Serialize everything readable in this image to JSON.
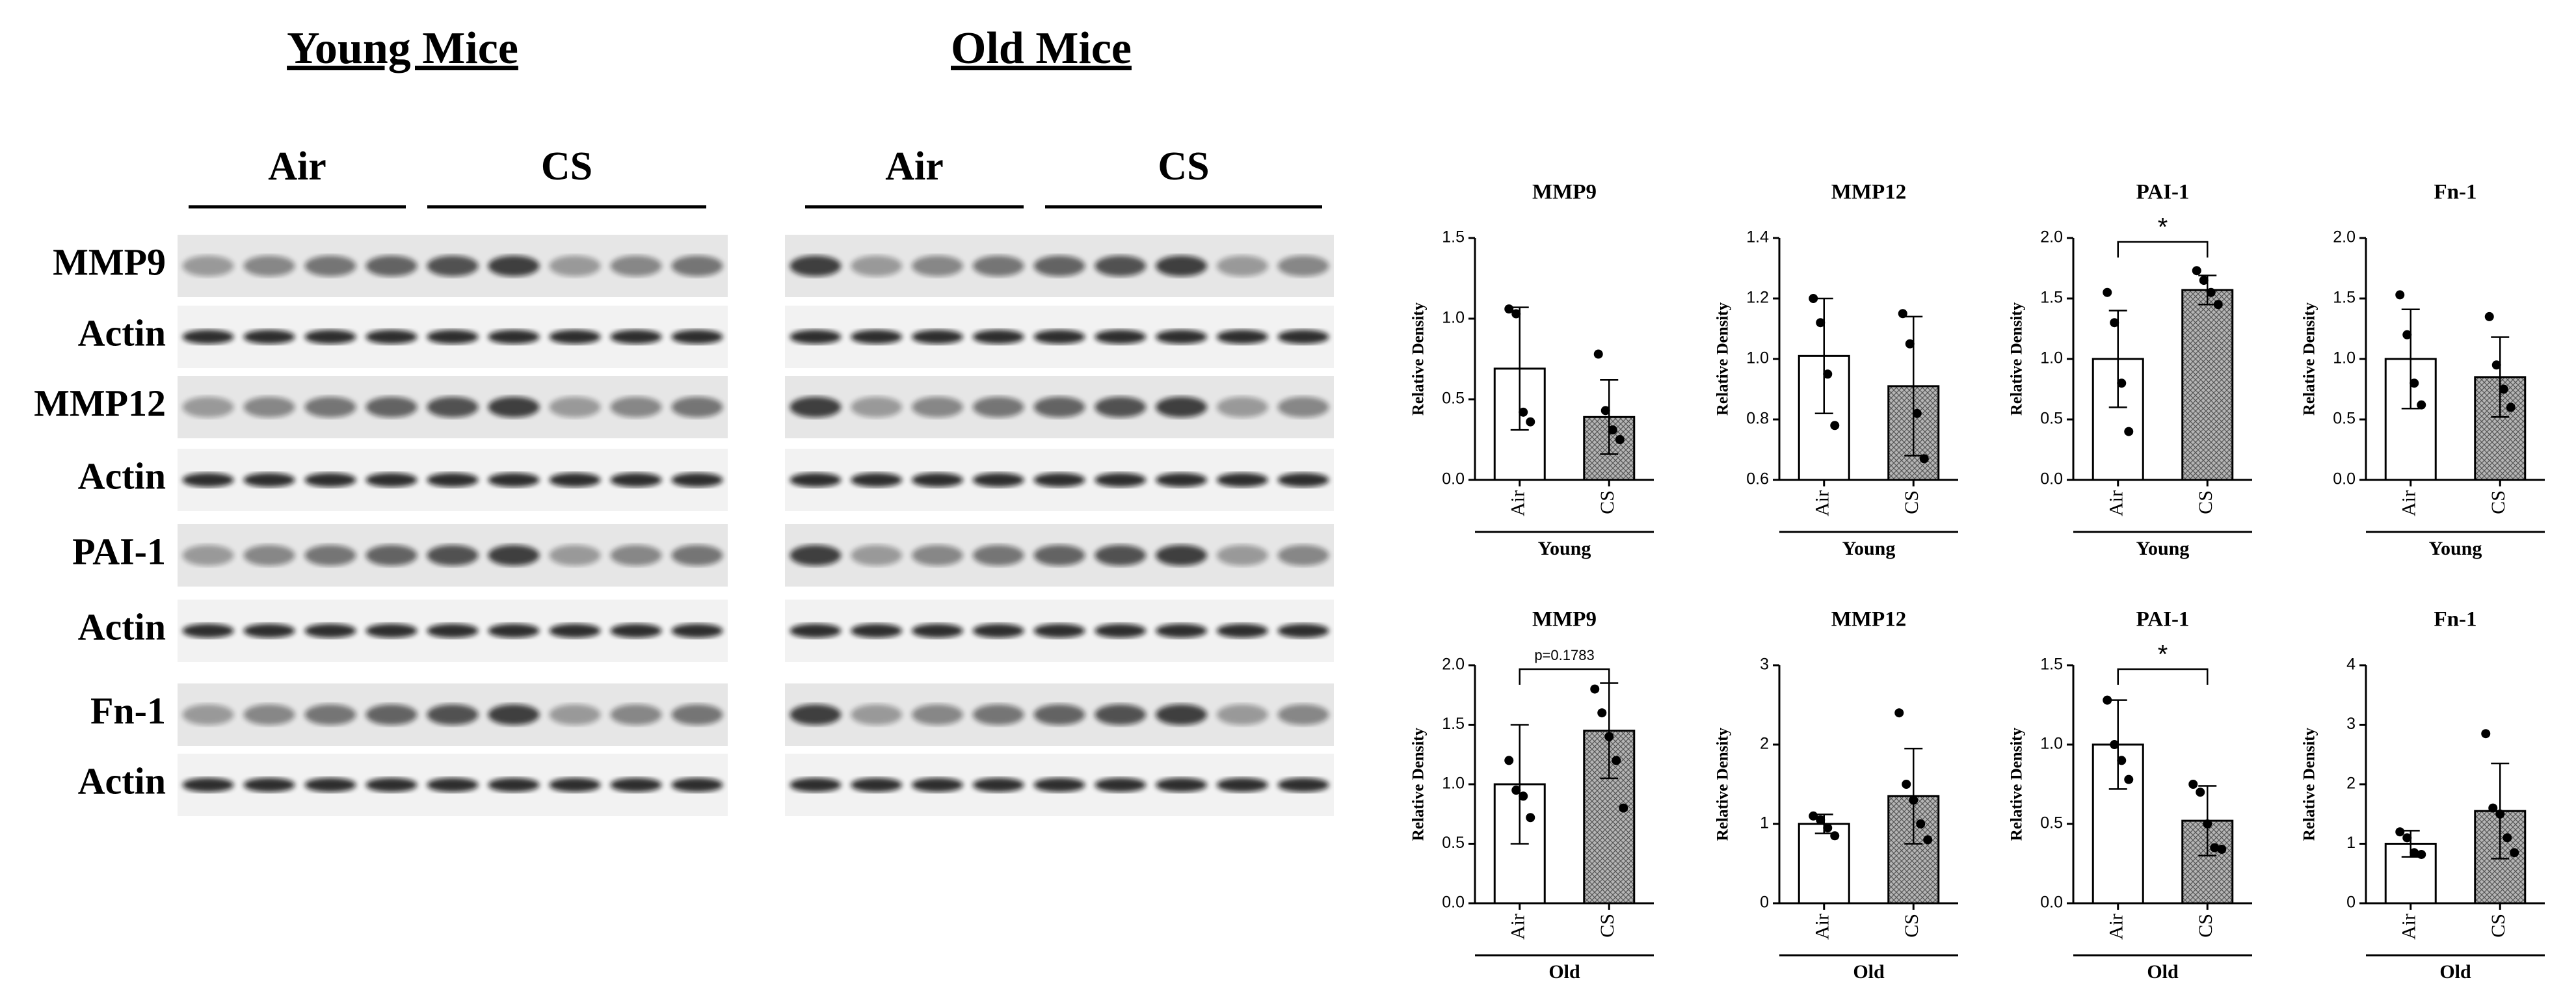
{
  "blots": {
    "panels": [
      {
        "title": "Young Mice",
        "groups": [
          "Air",
          "CS"
        ]
      },
      {
        "title": "Old Mice",
        "groups": [
          "Air",
          "CS"
        ]
      }
    ],
    "rows": [
      "MMP9",
      "Actin",
      "MMP12",
      "Actin",
      "PAI-1",
      "Actin",
      "Fn-1",
      "Actin"
    ]
  },
  "chart_data": [
    {
      "type": "bar",
      "title": "MMP9",
      "ylabel": "Relative Density",
      "group_label": "Young",
      "categories": [
        "Air",
        "CS"
      ],
      "values": [
        0.69,
        0.39
      ],
      "errors": [
        0.38,
        0.23
      ],
      "points": [
        [
          1.06,
          1.03,
          0.42,
          0.36
        ],
        [
          0.78,
          0.43,
          0.31,
          0.25
        ]
      ],
      "colors": [
        "#ffffff",
        "#a8a8a8"
      ],
      "ylim": [
        0,
        1.5
      ],
      "yticks": [
        {
          "value": 0,
          "label": "0.0"
        },
        0.5,
        {
          "value": 1,
          "label": "1.0"
        },
        1.5
      ]
    },
    {
      "type": "bar",
      "title": "MMP12",
      "ylabel": "Relative Density",
      "group_label": "Young",
      "categories": [
        "Air",
        "CS"
      ],
      "values": [
        1.01,
        0.91
      ],
      "errors": [
        0.19,
        0.23
      ],
      "points": [
        [
          1.2,
          1.12,
          0.95,
          0.78
        ],
        [
          1.15,
          1.05,
          0.82,
          0.67
        ]
      ],
      "colors": [
        "#ffffff",
        "#a8a8a8"
      ],
      "ylim": [
        0.6,
        1.4
      ],
      "yticks": [
        0.6,
        0.8,
        {
          "value": 1,
          "label": "1.0"
        },
        1.2,
        1.4
      ]
    },
    {
      "type": "bar",
      "title": "PAI-1",
      "ylabel": "Relative Density",
      "group_label": "Young",
      "annotation": "*",
      "categories": [
        "Air",
        "CS"
      ],
      "values": [
        1.0,
        1.57
      ],
      "errors": [
        0.4,
        0.12
      ],
      "points": [
        [
          1.55,
          1.3,
          0.8,
          0.4
        ],
        [
          1.73,
          1.65,
          1.55,
          1.45
        ]
      ],
      "colors": [
        "#ffffff",
        "#a8a8a8"
      ],
      "ylim": [
        0,
        2
      ],
      "yticks": [
        {
          "value": 0,
          "label": "0.0"
        },
        0.5,
        {
          "value": 1,
          "label": "1.0"
        },
        1.5,
        {
          "value": 2,
          "label": "2.0"
        }
      ]
    },
    {
      "type": "bar",
      "title": "Fn-1",
      "ylabel": "Relative Density",
      "group_label": "Young",
      "categories": [
        "Air",
        "CS"
      ],
      "values": [
        1.0,
        0.85
      ],
      "errors": [
        0.41,
        0.33
      ],
      "points": [
        [
          1.53,
          1.2,
          0.8,
          0.62
        ],
        [
          1.35,
          0.95,
          0.75,
          0.6
        ]
      ],
      "colors": [
        "#ffffff",
        "#a8a8a8"
      ],
      "ylim": [
        0,
        2
      ],
      "yticks": [
        {
          "value": 0,
          "label": "0.0"
        },
        0.5,
        {
          "value": 1,
          "label": "1.0"
        },
        1.5,
        {
          "value": 2,
          "label": "2.0"
        }
      ]
    },
    {
      "type": "bar",
      "title": "MMP9",
      "ylabel": "Relative Density",
      "group_label": "Old",
      "annotation": "p=0.1783",
      "categories": [
        "Air",
        "CS"
      ],
      "values": [
        1.0,
        1.45
      ],
      "errors": [
        0.5,
        0.4
      ],
      "points": [
        [
          1.2,
          0.95,
          0.9,
          0.72
        ],
        [
          1.8,
          1.6,
          1.4,
          1.2,
          0.8
        ]
      ],
      "colors": [
        "#ffffff",
        "#a8a8a8"
      ],
      "ylim": [
        0,
        2
      ],
      "yticks": [
        {
          "value": 0,
          "label": "0.0"
        },
        0.5,
        {
          "value": 1,
          "label": "1.0"
        },
        1.5,
        {
          "value": 2,
          "label": "2.0"
        }
      ]
    },
    {
      "type": "bar",
      "title": "MMP12",
      "ylabel": "Relative Density",
      "group_label": "Old",
      "categories": [
        "Air",
        "CS"
      ],
      "values": [
        1.0,
        1.35
      ],
      "errors": [
        0.12,
        0.6
      ],
      "points": [
        [
          1.1,
          1.05,
          0.95,
          0.85
        ],
        [
          2.4,
          1.5,
          1.3,
          1.0,
          0.8
        ]
      ],
      "colors": [
        "#ffffff",
        "#a8a8a8"
      ],
      "ylim": [
        0,
        3
      ],
      "yticks": [
        0,
        1,
        2,
        3
      ]
    },
    {
      "type": "bar",
      "title": "PAI-1",
      "ylabel": "Relative Density",
      "group_label": "Old",
      "annotation": "*",
      "categories": [
        "Air",
        "CS"
      ],
      "values": [
        1.0,
        0.52
      ],
      "errors": [
        0.28,
        0.22
      ],
      "points": [
        [
          1.28,
          1.0,
          0.9,
          0.78
        ],
        [
          0.75,
          0.7,
          0.5,
          0.35,
          0.34
        ]
      ],
      "colors": [
        "#ffffff",
        "#a8a8a8"
      ],
      "ylim": [
        0,
        1.5
      ],
      "yticks": [
        {
          "value": 0,
          "label": "0.0"
        },
        0.5,
        {
          "value": 1,
          "label": "1.0"
        },
        1.5
      ]
    },
    {
      "type": "bar",
      "title": "Fn-1",
      "ylabel": "Relative Density",
      "group_label": "Old",
      "categories": [
        "Air",
        "CS"
      ],
      "values": [
        1.0,
        1.55
      ],
      "errors": [
        0.22,
        0.8
      ],
      "points": [
        [
          1.2,
          1.1,
          0.85,
          0.82
        ],
        [
          2.85,
          1.6,
          1.5,
          1.1,
          0.85
        ]
      ],
      "colors": [
        "#ffffff",
        "#a8a8a8"
      ],
      "ylim": [
        0,
        4
      ],
      "yticks": [
        0,
        1,
        2,
        3,
        4
      ]
    }
  ]
}
